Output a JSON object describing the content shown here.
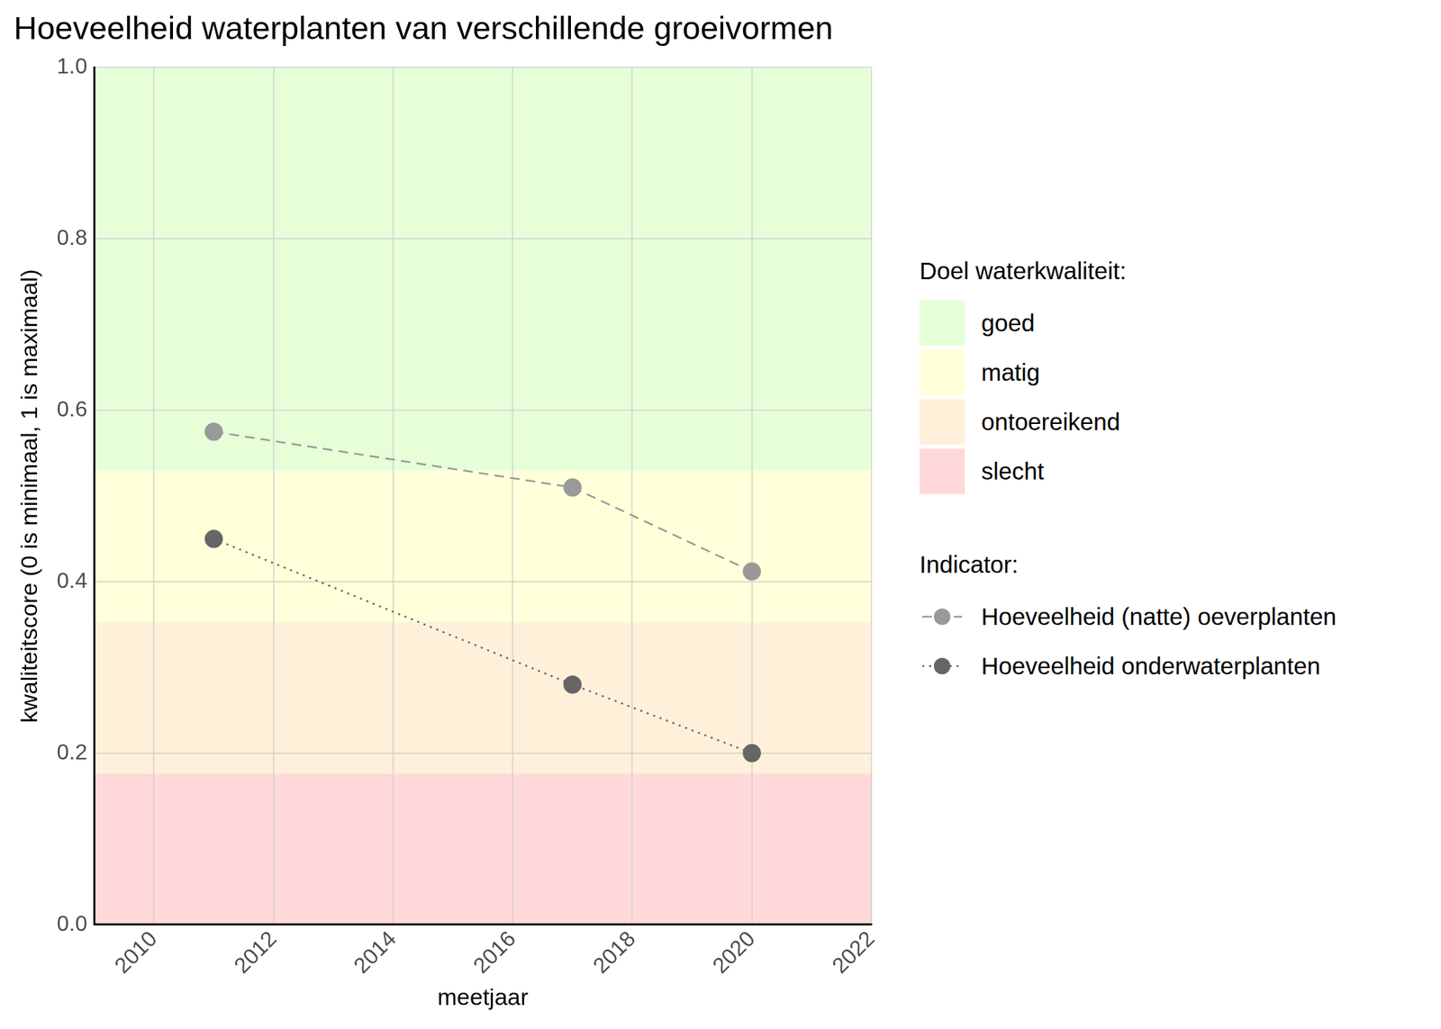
{
  "chart_data": {
    "type": "line",
    "title": "Hoeveelheid waterplanten van verschillende groeivormen",
    "x_label": "meetjaar",
    "y_label": "kwaliteitscore (0 is minimaal, 1 is maximaal)",
    "x": [
      2011,
      2017,
      2020
    ],
    "series": [
      {
        "name": "Hoeveelheid (natte) oeverplanten",
        "color": "#999999",
        "values": [
          0.575,
          0.51,
          0.412
        ],
        "marker": "circle",
        "line_style": "dashed"
      },
      {
        "name": "Hoeveelheid onderwaterplanten",
        "color": "#666666",
        "values": [
          0.45,
          0.28,
          0.2
        ],
        "marker": "circle",
        "line_style": "dotted"
      }
    ],
    "xlim": [
      2009,
      2022
    ],
    "xticks": [
      2010,
      2012,
      2014,
      2016,
      2018,
      2020,
      2022
    ],
    "ylim": [
      0,
      1
    ],
    "yticks": [
      {
        "value": 0,
        "label": "0.0"
      },
      0.2,
      0.4,
      0.6,
      0.8,
      {
        "value": 1,
        "label": "1.0"
      }
    ],
    "grid": true,
    "legend": "right",
    "legend_title": "Indicator:",
    "bands_title": "Doel waterkwaliteit:",
    "bands": [
      {
        "name": "goed",
        "from": 0.53,
        "to": 1,
        "color": "#e6ffd9"
      },
      {
        "name": "matig",
        "from": 0.353,
        "to": 0.53,
        "color": "#ffffd9"
      },
      {
        "name": "ontoereikend",
        "from": 0.176,
        "to": 0.353,
        "color": "#fff0d9"
      },
      {
        "name": "slecht",
        "from": 0,
        "to": 0.176,
        "color": "#ffd9d9"
      }
    ]
  }
}
